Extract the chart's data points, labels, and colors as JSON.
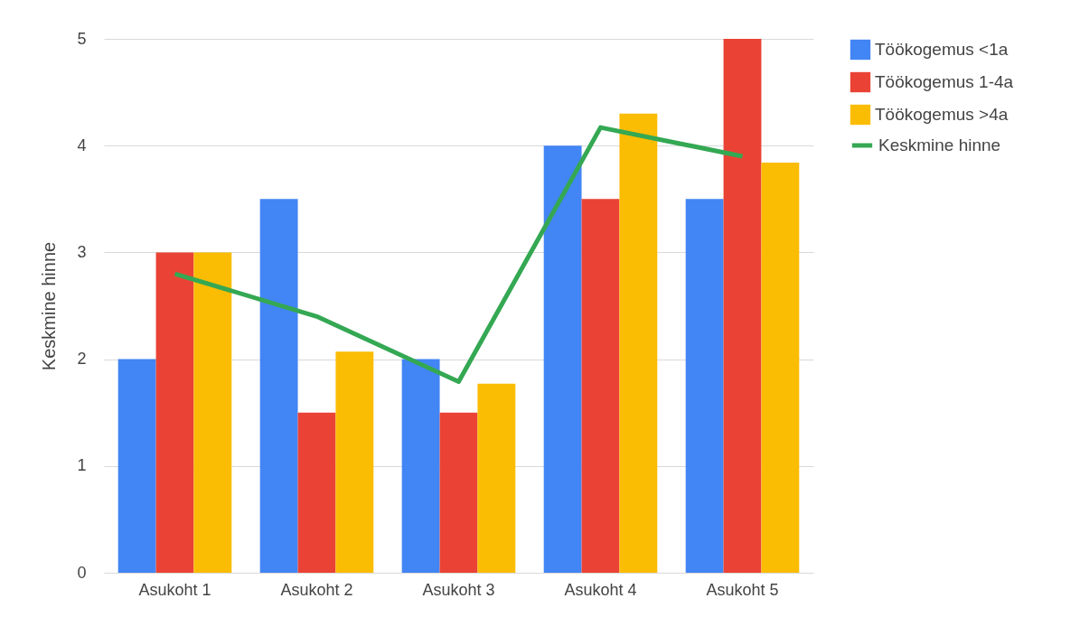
{
  "chart_data": {
    "type": "bar",
    "ylabel": "Keskmine hinne",
    "categories": [
      "Asukoht 1",
      "Asukoht 2",
      "Asukoht 3",
      "Asukoht 4",
      "Asukoht 5"
    ],
    "ylim": [
      0,
      5
    ],
    "yticks": [
      0,
      1,
      2,
      3,
      4,
      5
    ],
    "grid": "y",
    "legend": "right",
    "series": [
      {
        "name": "Töökogemus  <1a",
        "color": "#4285f4",
        "values": [
          2,
          3.5,
          2,
          4,
          3.5
        ]
      },
      {
        "name": "Töökogemus 1-4a",
        "color": "#ea4335",
        "values": [
          3,
          1.5,
          1.5,
          3.5,
          5
        ]
      },
      {
        "name": "Töökogemus >4a",
        "color": "#fbbc04",
        "values": [
          3,
          2.07,
          1.77,
          4.3,
          3.84
        ]
      },
      {
        "name": "Keskmine hinne",
        "type": "line",
        "color": "#34a853",
        "values": [
          2.8,
          2.4,
          1.79,
          4.17,
          3.9
        ]
      }
    ]
  }
}
